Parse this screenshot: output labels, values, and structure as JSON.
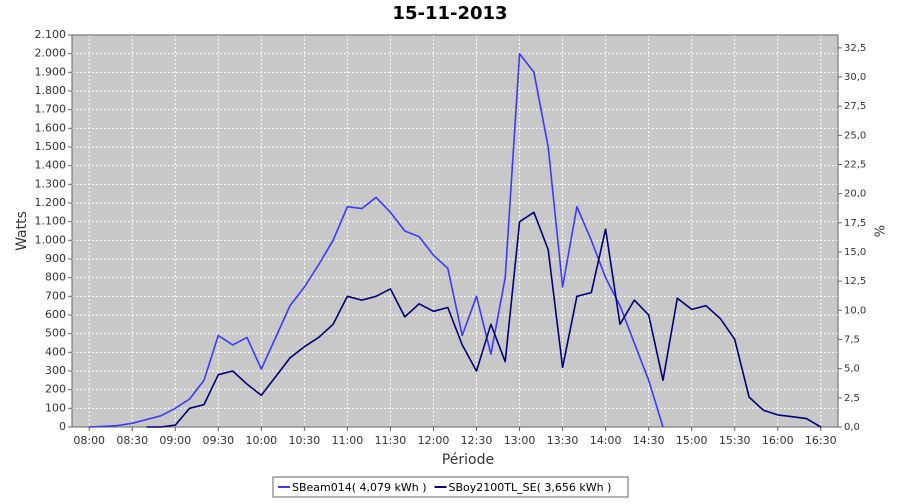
{
  "chart_data": {
    "type": "line",
    "title": "15-11-2013",
    "x_label": "Période",
    "y_label": "Watts",
    "y2_label": "%",
    "x": [
      "08:00",
      "08:10",
      "08:20",
      "08:30",
      "08:40",
      "08:50",
      "09:00",
      "09:10",
      "09:20",
      "09:30",
      "09:40",
      "09:50",
      "10:00",
      "10:10",
      "10:20",
      "10:30",
      "10:40",
      "10:50",
      "11:00",
      "11:10",
      "11:20",
      "11:30",
      "11:40",
      "11:50",
      "12:00",
      "12:10",
      "12:20",
      "12:30",
      "12:40",
      "12:50",
      "13:00",
      "13:10",
      "13:20",
      "13:30",
      "13:40",
      "13:50",
      "14:00",
      "14:10",
      "14:20",
      "14:30",
      "14:40",
      "14:50",
      "15:00",
      "15:10",
      "15:20",
      "15:30",
      "15:40",
      "15:50",
      "16:00",
      "16:10",
      "16:20",
      "16:30"
    ],
    "series": [
      {
        "name": "SBeam014( 4,079 kWh )",
        "color": "#3a3aff",
        "values": [
          0,
          3,
          8,
          20,
          40,
          60,
          100,
          150,
          250,
          490,
          440,
          480,
          310,
          480,
          650,
          750,
          870,
          1000,
          1180,
          1170,
          1230,
          1150,
          1050,
          1020,
          920,
          850,
          490,
          700,
          390,
          800,
          2000,
          1900,
          1500,
          750,
          1180,
          1000,
          800,
          650,
          450,
          250,
          0,
          null,
          null,
          null,
          null,
          null,
          null,
          null,
          null,
          null,
          null,
          null
        ]
      },
      {
        "name": "SBoy2100TL_SE( 3,656 kWh )",
        "color": "#00007a",
        "values": [
          null,
          null,
          null,
          null,
          0,
          0,
          10,
          100,
          120,
          280,
          300,
          230,
          170,
          270,
          370,
          430,
          480,
          550,
          700,
          680,
          700,
          740,
          590,
          660,
          620,
          640,
          440,
          300,
          550,
          350,
          1100,
          1150,
          950,
          320,
          700,
          720,
          1060,
          550,
          680,
          600,
          250,
          690,
          630,
          650,
          580,
          470,
          160,
          90,
          65,
          55,
          45,
          0
        ]
      }
    ],
    "xlim": [
      "07:48",
      "16:42"
    ],
    "xticks": [
      "08:00",
      "08:30",
      "09:00",
      "09:30",
      "10:00",
      "10:30",
      "11:00",
      "11:30",
      "12:00",
      "12:30",
      "13:00",
      "13:30",
      "14:00",
      "14:30",
      "15:00",
      "15:30",
      "16:00",
      "16:30"
    ],
    "ylim": [
      0,
      2100
    ],
    "yticks": [
      0,
      100,
      200,
      300,
      400,
      500,
      600,
      700,
      800,
      900,
      {
        "value": 1000,
        "label": "1.000"
      },
      {
        "value": 1100,
        "label": "1.100"
      },
      {
        "value": 1200,
        "label": "1.200"
      },
      {
        "value": 1300,
        "label": "1.300"
      },
      {
        "value": 1400,
        "label": "1.400"
      },
      {
        "value": 1500,
        "label": "1.500"
      },
      {
        "value": 1600,
        "label": "1.600"
      },
      {
        "value": 1700,
        "label": "1.700"
      },
      {
        "value": 1800,
        "label": "1.800"
      },
      {
        "value": 1900,
        "label": "1.900"
      },
      {
        "value": 2000,
        "label": "2.000"
      },
      {
        "value": 2100,
        "label": "2.100"
      }
    ],
    "y2lim": [
      0,
      33.6
    ],
    "y2ticks": [
      {
        "value": 0,
        "label": "0,0"
      },
      {
        "value": 2.5,
        "label": "2,5"
      },
      {
        "value": 5,
        "label": "5,0"
      },
      {
        "value": 7.5,
        "label": "7,5"
      },
      {
        "value": 10,
        "label": "10,0"
      },
      {
        "value": 12.5,
        "label": "12,5"
      },
      {
        "value": 15,
        "label": "15,0"
      },
      {
        "value": 17.5,
        "label": "17,5"
      },
      {
        "value": 20,
        "label": "20,0"
      },
      {
        "value": 22.5,
        "label": "22,5"
      },
      {
        "value": 25,
        "label": "25,0"
      },
      {
        "value": 27.5,
        "label": "27,5"
      },
      {
        "value": 30,
        "label": "30,0"
      },
      {
        "value": 32.5,
        "label": "32,5"
      }
    ],
    "grid": true,
    "legend": "bottom"
  }
}
